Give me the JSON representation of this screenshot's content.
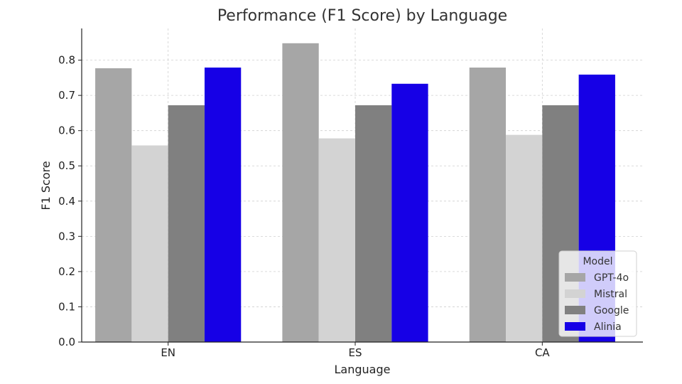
{
  "chart_data": {
    "type": "bar",
    "title": "Performance (F1 Score) by Language",
    "xlabel": "Language",
    "ylabel": "F1 Score",
    "categories": [
      "EN",
      "ES",
      "CA"
    ],
    "series": [
      {
        "name": "GPT-4o",
        "color": "#a6a6a6",
        "values": [
          0.777,
          0.848,
          0.779
        ]
      },
      {
        "name": "Mistral",
        "color": "#d3d3d3",
        "values": [
          0.558,
          0.578,
          0.588
        ]
      },
      {
        "name": "Google",
        "color": "#808080",
        "values": [
          0.672,
          0.672,
          0.672
        ]
      },
      {
        "name": "Alinia",
        "color": "#1600e6",
        "values": [
          0.779,
          0.733,
          0.759
        ]
      }
    ],
    "ylim": [
      0,
      0.89
    ],
    "yticks": [
      "0.0",
      "0.1",
      "0.2",
      "0.3",
      "0.4",
      "0.5",
      "0.6",
      "0.7",
      "0.8"
    ],
    "grid": true,
    "legend": {
      "title": "Model",
      "placement": "lower-right"
    }
  }
}
